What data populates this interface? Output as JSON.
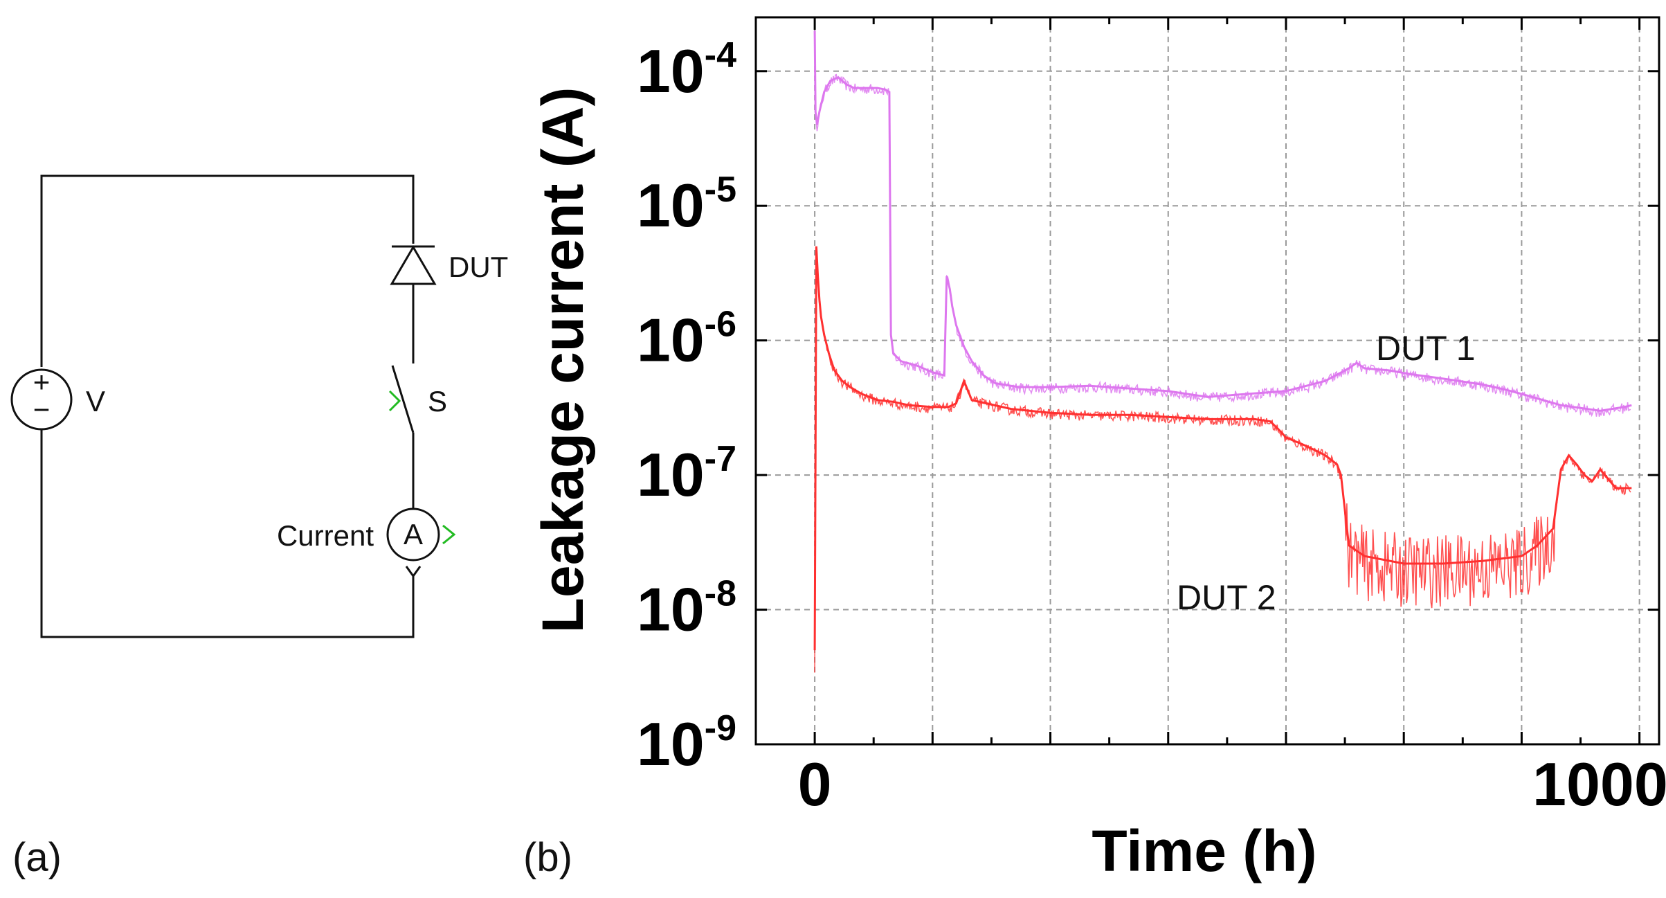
{
  "panel_a": {
    "label": "(a)",
    "source_label": "V",
    "source_plus": "+",
    "source_minus": "−",
    "dut_label": "DUT",
    "switch_label": "S",
    "meter_label": "Current",
    "meter_symbol": "A"
  },
  "panel_b": {
    "label": "(b)"
  },
  "colors": {
    "dut1": "#dd77ee",
    "dut2": "#ff3030",
    "grid": "#9a9a9a",
    "marker": "#22bb22"
  },
  "chart_data": {
    "type": "line",
    "title": "",
    "xlabel": "Time (h)",
    "ylabel": "Leakage current (A)",
    "xlim": [
      -75,
      1075
    ],
    "ylim_log10": [
      -9,
      -3.6
    ],
    "yscale": "log",
    "grid": true,
    "x_ticks": [
      {
        "value": 0,
        "label": "0"
      },
      {
        "value": 1000,
        "label": "1000"
      }
    ],
    "y_ticks": [
      {
        "value": 0.0001,
        "base": "10",
        "exp": "-4"
      },
      {
        "value": 1e-05,
        "base": "10",
        "exp": "-5"
      },
      {
        "value": 1e-06,
        "base": "10",
        "exp": "-6"
      },
      {
        "value": 1e-07,
        "base": "10",
        "exp": "-7"
      },
      {
        "value": 1e-08,
        "base": "10",
        "exp": "-8"
      },
      {
        "value": 1e-09,
        "base": "10",
        "exp": "-9"
      }
    ],
    "series": [
      {
        "name": "DUT 1",
        "color": "#dd77ee",
        "x": [
          0,
          1,
          3,
          6,
          12,
          20,
          30,
          40,
          50,
          60,
          70,
          80,
          90,
          95,
          97,
          100,
          110,
          130,
          150,
          165,
          168,
          172,
          175,
          180,
          190,
          200,
          215,
          230,
          260,
          300,
          350,
          400,
          450,
          500,
          550,
          600,
          650,
          680,
          690,
          700,
          730,
          760,
          800,
          850,
          880,
          900,
          950,
          1000,
          1030,
          1040
        ],
        "y": [
          0.0002,
          5e-05,
          4e-05,
          5e-05,
          7e-05,
          8.5e-05,
          9e-05,
          8e-05,
          7.5e-05,
          7.5e-05,
          7.5e-05,
          7.5e-05,
          7.3e-05,
          7e-05,
          1.1e-06,
          8e-07,
          7e-07,
          6.5e-07,
          5.8e-07,
          5.5e-07,
          3e-06,
          2.4e-06,
          1.8e-06,
          1.3e-06,
          9e-07,
          7e-07,
          5.5e-07,
          4.8e-07,
          4.5e-07,
          4.5e-07,
          4.6e-07,
          4.4e-07,
          4.2e-07,
          3.8e-07,
          4e-07,
          4.2e-07,
          5e-07,
          6.2e-07,
          6.8e-07,
          6.2e-07,
          6e-07,
          5.6e-07,
          5.2e-07,
          4.7e-07,
          4.3e-07,
          4e-07,
          3.3e-07,
          3e-07,
          3.2e-07,
          3.3e-07
        ]
      },
      {
        "name": "DUT 2",
        "color": "#ff3030",
        "x": [
          0,
          2,
          4,
          6,
          8,
          12,
          18,
          25,
          35,
          45,
          60,
          80,
          100,
          120,
          150,
          160,
          170,
          180,
          190,
          200,
          250,
          300,
          350,
          400,
          450,
          500,
          560,
          580,
          590,
          600,
          620,
          640,
          650,
          665,
          670,
          680,
          700,
          750,
          800,
          850,
          900,
          920,
          940,
          950,
          960,
          970,
          980,
          990,
          1000,
          1020,
          1040
        ],
        "y": [
          5e-09,
          5e-06,
          3e-06,
          2e-06,
          1.5e-06,
          1.1e-06,
          8e-07,
          6e-07,
          5e-07,
          4.5e-07,
          4e-07,
          3.6e-07,
          3.5e-07,
          3.3e-07,
          3.2e-07,
          3.2e-07,
          3.2e-07,
          3.4e-07,
          5e-07,
          3.6e-07,
          3.1e-07,
          2.9e-07,
          2.8e-07,
          2.8e-07,
          2.7e-07,
          2.6e-07,
          2.6e-07,
          2.5e-07,
          2.2e-07,
          1.9e-07,
          1.7e-07,
          1.5e-07,
          1.4e-07,
          1.2e-07,
          1e-07,
          3e-08,
          2.5e-08,
          2.2e-08,
          2.2e-08,
          2.3e-08,
          2.5e-08,
          3e-08,
          4e-08,
          1.1e-07,
          1.4e-07,
          1.2e-07,
          1e-07,
          9e-08,
          1.1e-07,
          8e-08,
          8e-08
        ]
      }
    ],
    "annotations": [
      {
        "text": "DUT 1",
        "series": "DUT 1"
      },
      {
        "text": "DUT 2",
        "series": "DUT 2"
      }
    ]
  }
}
